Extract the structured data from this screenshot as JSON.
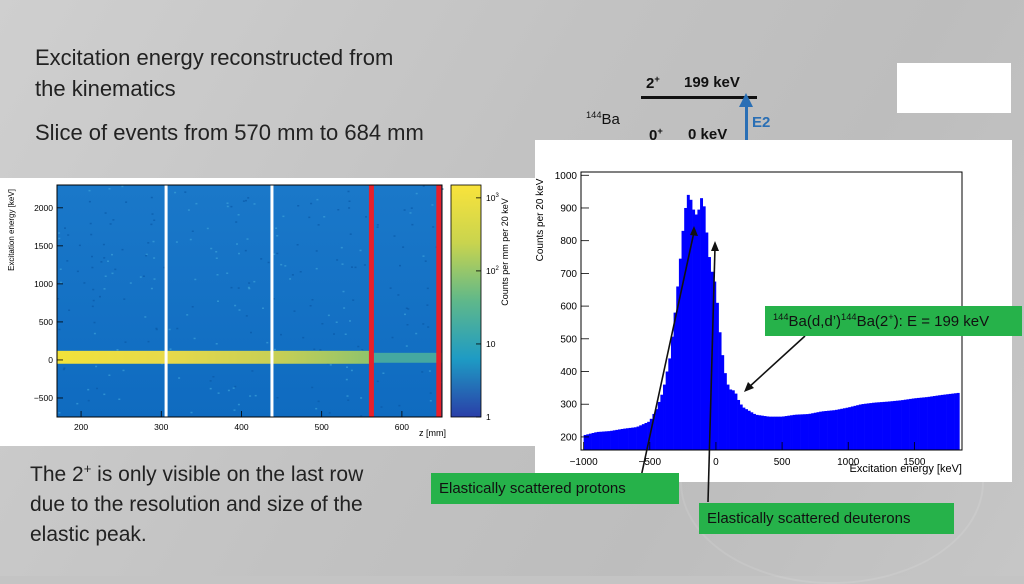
{
  "slide": {
    "title_line1": "Excitation energy reconstructed from",
    "title_line2": "the kinematics",
    "subtitle": "Slice of events from 570 mm to 684 mm",
    "note_line1": "The 2",
    "note_sup": "+",
    "note_line1_rest": " is only visible on the last row",
    "note_line2": "due to the resolution and size of the",
    "note_line3": "elastic peak."
  },
  "level_scheme": {
    "isotope_mass": "144",
    "isotope_symbol": "Ba",
    "upper_spin": "2",
    "upper_parity": "+",
    "upper_energy": "199 keV",
    "lower_spin": "0",
    "lower_parity": "+",
    "lower_energy": "0 keV",
    "transition": "E2",
    "arrow_color": "#2a6fb5"
  },
  "annotations": {
    "peak_label_sup1": "144",
    "peak_label_part1": "Ba(d,d’)",
    "peak_label_sup2": "144",
    "peak_label_part2": "Ba(2",
    "peak_label_sup3": "+",
    "peak_label_part3": "): E = 199 keV",
    "protons": "Elastically scattered protons",
    "deuterons": "Elastically scattered deuterons",
    "label_color": "#26b24a"
  },
  "chart_data": [
    {
      "type": "heatmap",
      "xlabel": "z [mm]",
      "ylabel": "Excitation energy [keV]",
      "zlabel": "Counts per mm per 20 keV",
      "xlim": [
        170,
        650
      ],
      "ylim": [
        -750,
        2300
      ],
      "zscale": "log",
      "zlim": [
        1,
        1500
      ],
      "x_ticks": [
        200,
        300,
        400,
        500,
        600
      ],
      "y_ticks": [
        2000,
        1500,
        1000,
        500,
        0,
        -500
      ],
      "y_tick_labels": [
        "2000",
        "1500",
        "1000",
        "500",
        "0",
        "−500"
      ],
      "z_ticks": [
        {
          "base": "10",
          "exp": "3",
          "value": 1000
        },
        {
          "base": "10",
          "exp": "2",
          "value": 100
        },
        {
          "base": "10",
          "exp": "",
          "value": 10
        },
        {
          "base": "1",
          "exp": "",
          "value": 1
        }
      ],
      "white_lines_z": [
        306,
        438
      ],
      "red_lines_z": [
        562,
        646
      ],
      "band_energy": [
        -50,
        120
      ],
      "grid": false
    },
    {
      "type": "bar",
      "xlabel": "Excitation energy [keV]",
      "ylabel": "Counts per 20 keV",
      "xlim": [
        -1020,
        1860
      ],
      "ylim": [
        160,
        1010
      ],
      "x_ticks": [
        -1000,
        -500,
        0,
        500,
        1000,
        1500
      ],
      "x_tick_labels": [
        "−1000",
        "−500",
        "0",
        "500",
        "1000",
        "1500"
      ],
      "y_ticks": [
        200,
        300,
        400,
        500,
        600,
        700,
        800,
        900,
        1000
      ],
      "bin_width": 20,
      "bar_color": "#0000ff",
      "anchors": [
        [
          -1000,
          205
        ],
        [
          -900,
          215
        ],
        [
          -800,
          218
        ],
        [
          -700,
          225
        ],
        [
          -600,
          230
        ],
        [
          -500,
          248
        ],
        [
          -450,
          285
        ],
        [
          -400,
          340
        ],
        [
          -350,
          440
        ],
        [
          -320,
          540
        ],
        [
          -300,
          620
        ],
        [
          -280,
          700
        ],
        [
          -260,
          790
        ],
        [
          -240,
          870
        ],
        [
          -220,
          930
        ],
        [
          -200,
          950
        ],
        [
          -180,
          900
        ],
        [
          -160,
          890
        ],
        [
          -140,
          870
        ],
        [
          -120,
          920
        ],
        [
          -100,
          940
        ],
        [
          -80,
          870
        ],
        [
          -60,
          780
        ],
        [
          -40,
          720
        ],
        [
          -20,
          690
        ],
        [
          0,
          660
        ],
        [
          20,
          560
        ],
        [
          40,
          480
        ],
        [
          60,
          420
        ],
        [
          80,
          370
        ],
        [
          100,
          350
        ],
        [
          120,
          340
        ],
        [
          140,
          345
        ],
        [
          160,
          320
        ],
        [
          200,
          292
        ],
        [
          300,
          268
        ],
        [
          400,
          262
        ],
        [
          500,
          262
        ],
        [
          600,
          268
        ],
        [
          700,
          270
        ],
        [
          800,
          278
        ],
        [
          900,
          282
        ],
        [
          1000,
          290
        ],
        [
          1100,
          300
        ],
        [
          1200,
          305
        ],
        [
          1300,
          308
        ],
        [
          1400,
          312
        ],
        [
          1500,
          318
        ],
        [
          1600,
          322
        ],
        [
          1700,
          328
        ],
        [
          1840,
          335
        ]
      ],
      "grid": false
    }
  ]
}
